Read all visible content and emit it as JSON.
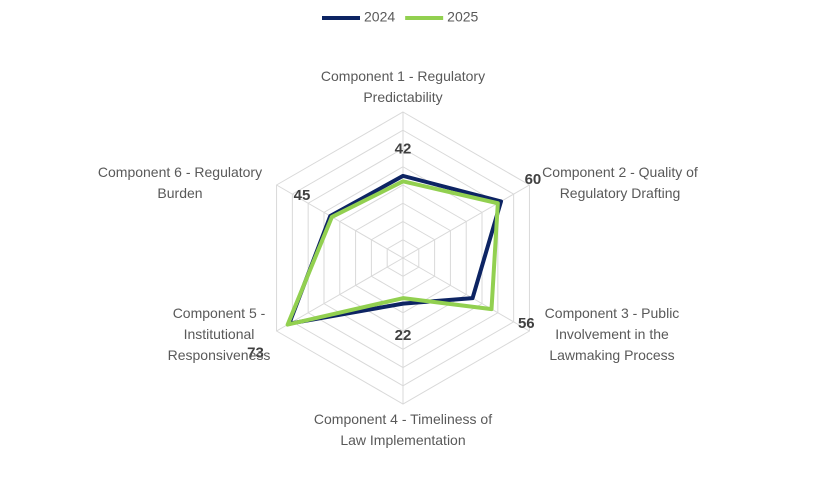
{
  "chart_data": {
    "type": "radar",
    "categories": [
      "Component 1 - Regulatory Predictability",
      "Component 2 - Quality of Regulatory Drafting",
      "Component 3 - Public Involvement in the Lawmaking Process",
      "Component 4 - Timeliness of Law Implementation",
      "Component 5 - Institutional Responsiveness",
      "Component 6 - Regulatory Burden"
    ],
    "series": [
      {
        "name": "2024",
        "color": "#0d2463",
        "values": [
          45,
          62,
          44,
          25,
          72,
          46
        ]
      },
      {
        "name": "2025",
        "color": "#92d050",
        "values": [
          42,
          60,
          56,
          22,
          73,
          45
        ],
        "value_labels": [
          "42",
          "60",
          "56",
          "22",
          "73",
          "45"
        ]
      }
    ],
    "rlim": [
      0,
      80
    ],
    "rticks": [
      10,
      20,
      30,
      40,
      50,
      60,
      70,
      80
    ],
    "grid": true,
    "legend": "top"
  }
}
